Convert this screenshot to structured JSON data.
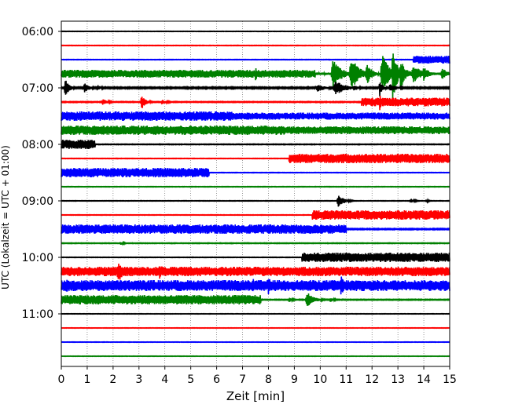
{
  "chart_data": {
    "type": "line",
    "xlabel": "Zeit  [min]",
    "ylabel": "UTC (Lokalzeit = UTC + 01:00)",
    "xlim": [
      0,
      15
    ],
    "x_ticks": [
      0,
      1,
      2,
      3,
      4,
      5,
      6,
      7,
      8,
      9,
      10,
      11,
      12,
      13,
      14,
      15
    ],
    "y_ticks": [
      "06:00",
      "07:00",
      "08:00",
      "09:00",
      "10:00",
      "11:00"
    ],
    "grid": "vertical dotted",
    "start_time": "06:00",
    "trace_interval_min": 15,
    "color_cycle": [
      "#000000",
      "#ff0000",
      "#0000ff",
      "#008000"
    ],
    "series": [
      {
        "start": "06:00",
        "color": "#000000",
        "noise": 0.25,
        "events": []
      },
      {
        "start": "06:15",
        "color": "#ff0000",
        "noise": 0.3,
        "events": []
      },
      {
        "start": "06:30",
        "color": "#0000ff",
        "noise": 0.3,
        "events": [
          {
            "type": "block",
            "from": 13.6,
            "to": 15.0,
            "amp": 5
          }
        ]
      },
      {
        "start": "06:45",
        "color": "#008000",
        "noise": 1.6,
        "events": [
          {
            "type": "block",
            "from": 0,
            "to": 9.8,
            "amp": 5
          },
          {
            "type": "burst",
            "at": 7.5,
            "amp": 10,
            "width": 0.1
          },
          {
            "type": "burst",
            "at": 10.5,
            "amp": 20,
            "width": 0.3
          },
          {
            "type": "burst",
            "at": 11.2,
            "amp": 22,
            "width": 0.3
          },
          {
            "type": "burst",
            "at": 11.8,
            "amp": 14,
            "width": 0.2
          },
          {
            "type": "burst",
            "at": 12.4,
            "amp": 24,
            "width": 0.3
          },
          {
            "type": "burst",
            "at": 12.8,
            "amp": 40,
            "width": 0.15
          },
          {
            "type": "burst",
            "at": 13.1,
            "amp": 20,
            "width": 0.2
          },
          {
            "type": "burst",
            "at": 13.6,
            "amp": 12,
            "width": 0.3
          },
          {
            "type": "burst",
            "at": 14.0,
            "amp": 10,
            "width": 0.2
          },
          {
            "type": "burst",
            "at": 14.7,
            "amp": 8,
            "width": 0.2
          }
        ]
      },
      {
        "start": "07:00",
        "color": "#000000",
        "noise": 0.8,
        "events": [
          {
            "type": "burst",
            "at": 0.15,
            "amp": 12,
            "width": 0.15
          },
          {
            "type": "burst",
            "at": 0.9,
            "amp": 6,
            "width": 0.2
          },
          {
            "type": "burst",
            "at": 1.4,
            "amp": 4,
            "width": 0.15
          },
          {
            "type": "burst",
            "at": 9.9,
            "amp": 5,
            "width": 0.3
          },
          {
            "type": "burst",
            "at": 10.6,
            "amp": 9,
            "width": 0.4
          },
          {
            "type": "burst",
            "at": 11.3,
            "amp": 4,
            "width": 0.2
          },
          {
            "type": "burst",
            "at": 12.3,
            "amp": 12,
            "width": 0.1
          },
          {
            "type": "burst",
            "at": 12.7,
            "amp": 5,
            "width": 0.3
          }
        ]
      },
      {
        "start": "07:15",
        "color": "#ff0000",
        "noise": 0.5,
        "events": [
          {
            "type": "burst",
            "at": 1.6,
            "amp": 4,
            "width": 0.2
          },
          {
            "type": "burst",
            "at": 3.1,
            "amp": 10,
            "width": 0.15
          },
          {
            "type": "burst",
            "at": 3.9,
            "amp": 3,
            "width": 0.2
          },
          {
            "type": "block",
            "from": 11.6,
            "to": 15.0,
            "amp": 5.5
          },
          {
            "type": "burst",
            "at": 12.3,
            "amp": 12,
            "width": 0.08
          }
        ]
      },
      {
        "start": "07:30",
        "color": "#0000ff",
        "noise": 1.2,
        "events": [
          {
            "type": "block",
            "from": 0,
            "to": 6.6,
            "amp": 6
          },
          {
            "type": "block",
            "from": 6.6,
            "to": 15.0,
            "amp": 4.5
          }
        ]
      },
      {
        "start": "07:45",
        "color": "#008000",
        "noise": 1.0,
        "events": [
          {
            "type": "block",
            "from": 0,
            "to": 8.6,
            "amp": 6
          },
          {
            "type": "block",
            "from": 8.6,
            "to": 15.0,
            "amp": 5
          }
        ]
      },
      {
        "start": "08:00",
        "color": "#000000",
        "noise": 0.4,
        "events": [
          {
            "type": "block",
            "from": 0,
            "to": 1.3,
            "amp": 6
          }
        ]
      },
      {
        "start": "08:15",
        "color": "#ff0000",
        "noise": 0.3,
        "events": [
          {
            "type": "block",
            "from": 8.8,
            "to": 15.0,
            "amp": 6
          }
        ]
      },
      {
        "start": "08:30",
        "color": "#0000ff",
        "noise": 0.3,
        "events": [
          {
            "type": "block",
            "from": 0,
            "to": 5.7,
            "amp": 6
          }
        ]
      },
      {
        "start": "08:45",
        "color": "#008000",
        "noise": 0.3,
        "events": []
      },
      {
        "start": "09:00",
        "color": "#000000",
        "noise": 0.3,
        "events": [
          {
            "type": "burst",
            "at": 10.7,
            "amp": 9,
            "width": 0.2
          },
          {
            "type": "burst",
            "at": 13.5,
            "amp": 3,
            "width": 0.15
          },
          {
            "type": "burst",
            "at": 14.1,
            "amp": 2,
            "width": 0.1
          }
        ]
      },
      {
        "start": "09:15",
        "color": "#ff0000",
        "noise": 0.3,
        "events": [
          {
            "type": "block",
            "from": 9.7,
            "to": 15.0,
            "amp": 6
          }
        ]
      },
      {
        "start": "09:30",
        "color": "#0000ff",
        "noise": 0.6,
        "events": [
          {
            "type": "block",
            "from": 0,
            "to": 11.0,
            "amp": 6
          }
        ]
      },
      {
        "start": "09:45",
        "color": "#008000",
        "noise": 0.4,
        "events": [
          {
            "type": "burst",
            "at": 2.3,
            "amp": 2,
            "width": 0.15
          }
        ]
      },
      {
        "start": "10:00",
        "color": "#000000",
        "noise": 0.3,
        "events": [
          {
            "type": "block",
            "from": 9.3,
            "to": 15.0,
            "amp": 6
          }
        ]
      },
      {
        "start": "10:15",
        "color": "#ff0000",
        "noise": 1.0,
        "events": [
          {
            "type": "block",
            "from": 0,
            "to": 15.0,
            "amp": 6
          },
          {
            "type": "burst",
            "at": 2.2,
            "amp": 14,
            "width": 0.25
          },
          {
            "type": "burst",
            "at": 3.8,
            "amp": 10,
            "width": 0.2
          },
          {
            "type": "burst",
            "at": 0.4,
            "amp": 6,
            "width": 0.1
          }
        ]
      },
      {
        "start": "10:30",
        "color": "#0000ff",
        "noise": 1.0,
        "events": [
          {
            "type": "block",
            "from": 0,
            "to": 15.0,
            "amp": 7
          },
          {
            "type": "burst",
            "at": 0.2,
            "amp": 12,
            "width": 0.15
          },
          {
            "type": "burst",
            "at": 0.9,
            "amp": 10,
            "width": 0.15
          },
          {
            "type": "burst",
            "at": 1.5,
            "amp": 8,
            "width": 0.15
          },
          {
            "type": "burst",
            "at": 7.4,
            "amp": 10,
            "width": 0.1
          },
          {
            "type": "burst",
            "at": 8.0,
            "amp": 14,
            "width": 0.12
          },
          {
            "type": "burst",
            "at": 10.8,
            "amp": 14,
            "width": 0.15
          }
        ]
      },
      {
        "start": "10:45",
        "color": "#008000",
        "noise": 0.5,
        "events": [
          {
            "type": "block",
            "from": 0,
            "to": 7.7,
            "amp": 6
          },
          {
            "type": "burst",
            "at": 9.5,
            "amp": 10,
            "width": 0.25
          },
          {
            "type": "burst",
            "at": 8.8,
            "amp": 3,
            "width": 0.15
          },
          {
            "type": "burst",
            "at": 10.4,
            "amp": 3,
            "width": 0.15
          }
        ]
      },
      {
        "start": "11:00",
        "color": "#000000",
        "noise": 0.25,
        "events": []
      },
      {
        "start": "11:15",
        "color": "#ff0000",
        "noise": 0.25,
        "events": []
      },
      {
        "start": "11:30",
        "color": "#0000ff",
        "noise": 0.25,
        "events": []
      },
      {
        "start": "11:45",
        "color": "#008000",
        "noise": 0.25,
        "events": []
      }
    ]
  }
}
